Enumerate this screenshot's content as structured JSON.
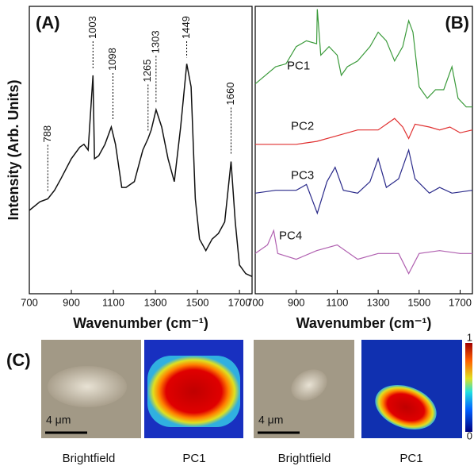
{
  "chart_data": [
    {
      "type": "line",
      "panel_label": "(A)",
      "x_label": "Wavenumber (cm⁻¹)",
      "y_label": "Intensity (Arb. Units)",
      "xlim": [
        700,
        1760
      ],
      "ylim": [
        0,
        100
      ],
      "xticks": [
        700,
        900,
        1100,
        1300,
        1500,
        1700
      ],
      "color": "#111111",
      "x": [
        700,
        750,
        788,
        820,
        850,
        900,
        940,
        960,
        980,
        1003,
        1010,
        1030,
        1060,
        1090,
        1110,
        1140,
        1160,
        1200,
        1240,
        1265,
        1280,
        1303,
        1330,
        1360,
        1390,
        1420,
        1449,
        1470,
        1490,
        1510,
        1540,
        1570,
        1600,
        1630,
        1660,
        1680,
        1700,
        1730,
        1760
      ],
      "values": [
        29,
        32,
        33,
        36,
        40,
        47,
        51,
        52,
        50,
        76,
        47,
        48,
        52,
        58,
        52,
        37,
        37,
        39,
        50,
        54,
        57,
        64,
        58,
        47,
        39,
        58,
        80,
        72,
        33,
        19,
        15,
        19,
        21,
        25,
        46,
        25,
        10,
        7,
        6
      ],
      "annotations": [
        {
          "x": 788,
          "y": 33,
          "text": "788"
        },
        {
          "x": 1003,
          "y": 76,
          "text": "1003"
        },
        {
          "x": 1098,
          "y": 58,
          "text": "1098"
        },
        {
          "x": 1265,
          "y": 54,
          "text": "1265"
        },
        {
          "x": 1303,
          "y": 64,
          "text": "1303"
        },
        {
          "x": 1449,
          "y": 80,
          "text": "1449"
        },
        {
          "x": 1660,
          "y": 46,
          "text": "1660"
        }
      ]
    },
    {
      "type": "multiline",
      "panel_label": "(B)",
      "x_label": "Wavenumber (cm⁻¹)",
      "xlim": [
        700,
        1760
      ],
      "ylim": [
        0,
        100
      ],
      "xticks": [
        700,
        900,
        1100,
        1300,
        1500,
        1700
      ],
      "series": [
        {
          "name": "PC1",
          "color": "#3a9a3a",
          "x": [
            700,
            800,
            850,
            900,
            950,
            1000,
            1003,
            1020,
            1060,
            1100,
            1120,
            1150,
            1200,
            1260,
            1300,
            1340,
            1380,
            1420,
            1449,
            1470,
            1500,
            1540,
            1580,
            1620,
            1660,
            1690,
            1730,
            1760
          ],
          "values": [
            73,
            79,
            80,
            86,
            88,
            87,
            99,
            83,
            86,
            83,
            76,
            79,
            81,
            86,
            91,
            88,
            81,
            86,
            95,
            91,
            72,
            68,
            71,
            71,
            79,
            68,
            65,
            65
          ]
        },
        {
          "name": "PC2",
          "color": "#e03030",
          "x": [
            700,
            800,
            900,
            1000,
            1100,
            1200,
            1300,
            1380,
            1420,
            1449,
            1480,
            1550,
            1600,
            1650,
            1700,
            1760
          ],
          "values": [
            52,
            52,
            52,
            53,
            55,
            57,
            57,
            61,
            58,
            54,
            59,
            58,
            57,
            58,
            56,
            57
          ]
        },
        {
          "name": "PC3",
          "color": "#2a2a8a",
          "x": [
            700,
            800,
            900,
            950,
            1003,
            1050,
            1090,
            1130,
            1200,
            1260,
            1300,
            1340,
            1400,
            1449,
            1480,
            1550,
            1600,
            1660,
            1760
          ],
          "values": [
            35,
            36,
            36,
            38,
            28,
            39,
            44,
            36,
            35,
            39,
            47,
            37,
            40,
            50,
            40,
            35,
            37,
            35,
            36
          ]
        },
        {
          "name": "PC4",
          "color": "#b060b0",
          "x": [
            700,
            760,
            790,
            810,
            900,
            1000,
            1100,
            1200,
            1300,
            1400,
            1449,
            1500,
            1600,
            1700,
            1760
          ],
          "values": [
            14,
            17,
            22,
            14,
            12,
            15,
            17,
            12,
            14,
            14,
            7,
            14,
            15,
            14,
            14
          ]
        }
      ]
    }
  ],
  "panel_c": {
    "label": "(C)",
    "captions": [
      "Brightfield",
      "PC1",
      "Brightfield",
      "PC1"
    ],
    "scale_bars": [
      "4 μm",
      "4 μm"
    ],
    "colorbar": {
      "max_label": "1",
      "min_label": "0"
    }
  }
}
